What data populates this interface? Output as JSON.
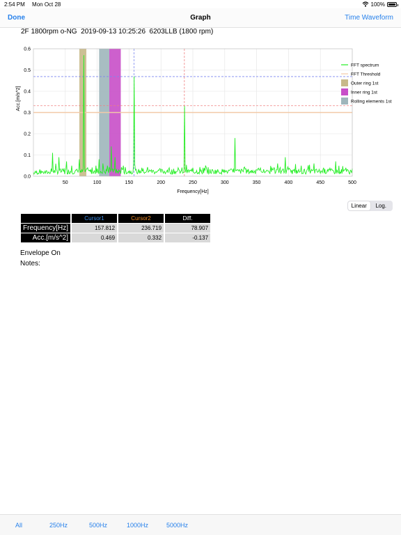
{
  "status_bar": {
    "time": "2:54 PM",
    "date": "Mon Oct 28",
    "battery": "100%"
  },
  "nav": {
    "done_label": "Done",
    "title": "Graph",
    "right_label": "Time Waveform"
  },
  "header_info": "2F 1800rpm o-NG  2019-09-13 10:25:26  6203LLB (1800 rpm)",
  "chart_data": {
    "type": "line",
    "xlabel": "Frequency[Hz]",
    "ylabel": "Acc.[m/s^2]",
    "xlim": [
      0,
      500
    ],
    "ylim": [
      0,
      0.6
    ],
    "x_ticks": [
      50,
      100,
      150,
      200,
      250,
      300,
      350,
      400,
      450,
      500
    ],
    "y_ticks": [
      0.0,
      0.1,
      0.2,
      0.3,
      0.4,
      0.5,
      0.6
    ],
    "grid": true,
    "legend_position": "top-right",
    "threshold": 0.3,
    "bands": [
      {
        "name": "Outer ring 1st",
        "x": [
          72,
          83
        ],
        "color": "#c8b98a"
      },
      {
        "name": "Rolling elements 1st",
        "x": [
          103,
          119
        ],
        "color": "#9fb6bb"
      },
      {
        "name": "Inner ring 1st",
        "x": [
          119,
          137
        ],
        "color": "#c84fc8"
      }
    ],
    "cursors": [
      {
        "x": 157.812,
        "y": 0.469,
        "color": "#7b86f0"
      },
      {
        "x": 236.719,
        "y": 0.332,
        "color": "#f08080"
      }
    ],
    "peaks": [
      [
        30,
        0.11
      ],
      [
        40,
        0.09
      ],
      [
        52,
        0.07
      ],
      [
        60,
        0.05
      ],
      [
        72,
        0.08
      ],
      [
        79,
        0.57
      ],
      [
        85,
        0.04
      ],
      [
        98,
        0.05
      ],
      [
        103,
        0.08
      ],
      [
        109,
        0.06
      ],
      [
        116,
        0.05
      ],
      [
        122,
        0.14
      ],
      [
        128,
        0.09
      ],
      [
        141,
        0.05
      ],
      [
        158,
        0.47
      ],
      [
        170,
        0.04
      ],
      [
        185,
        0.03
      ],
      [
        213,
        0.04
      ],
      [
        227,
        0.04
      ],
      [
        237,
        0.33
      ],
      [
        250,
        0.04
      ],
      [
        266,
        0.04
      ],
      [
        285,
        0.03
      ],
      [
        316,
        0.18
      ],
      [
        330,
        0.04
      ],
      [
        350,
        0.03
      ],
      [
        377,
        0.04
      ],
      [
        395,
        0.09
      ],
      [
        420,
        0.05
      ],
      [
        440,
        0.06
      ],
      [
        455,
        0.04
      ],
      [
        474,
        0.07
      ],
      [
        490,
        0.04
      ]
    ],
    "series": [
      {
        "name": "FFT spectrum",
        "color": "#22ee22"
      },
      {
        "name": "FFT Threshold",
        "color": "#f2c9a7"
      }
    ]
  },
  "scale_toggle": {
    "linear": "Linear",
    "log": "Log."
  },
  "cursor_table": {
    "headers": [
      "Cursor1",
      "Cursor2",
      "Diff."
    ],
    "header_colors": [
      "#3b8eea",
      "#f08a24",
      "#ffffff"
    ],
    "rows": [
      {
        "label": "Frequency[Hz]",
        "values": [
          "157.812",
          "236.719",
          "78.907"
        ]
      },
      {
        "label": "Acc.[m/s^2]",
        "values": [
          "0.469",
          "0.332",
          "-0.137"
        ]
      }
    ]
  },
  "envelope_label": "Envelope On",
  "notes_label": "Notes:",
  "bottom_ranges": [
    "All",
    "250Hz",
    "500Hz",
    "1000Hz",
    "5000Hz"
  ]
}
